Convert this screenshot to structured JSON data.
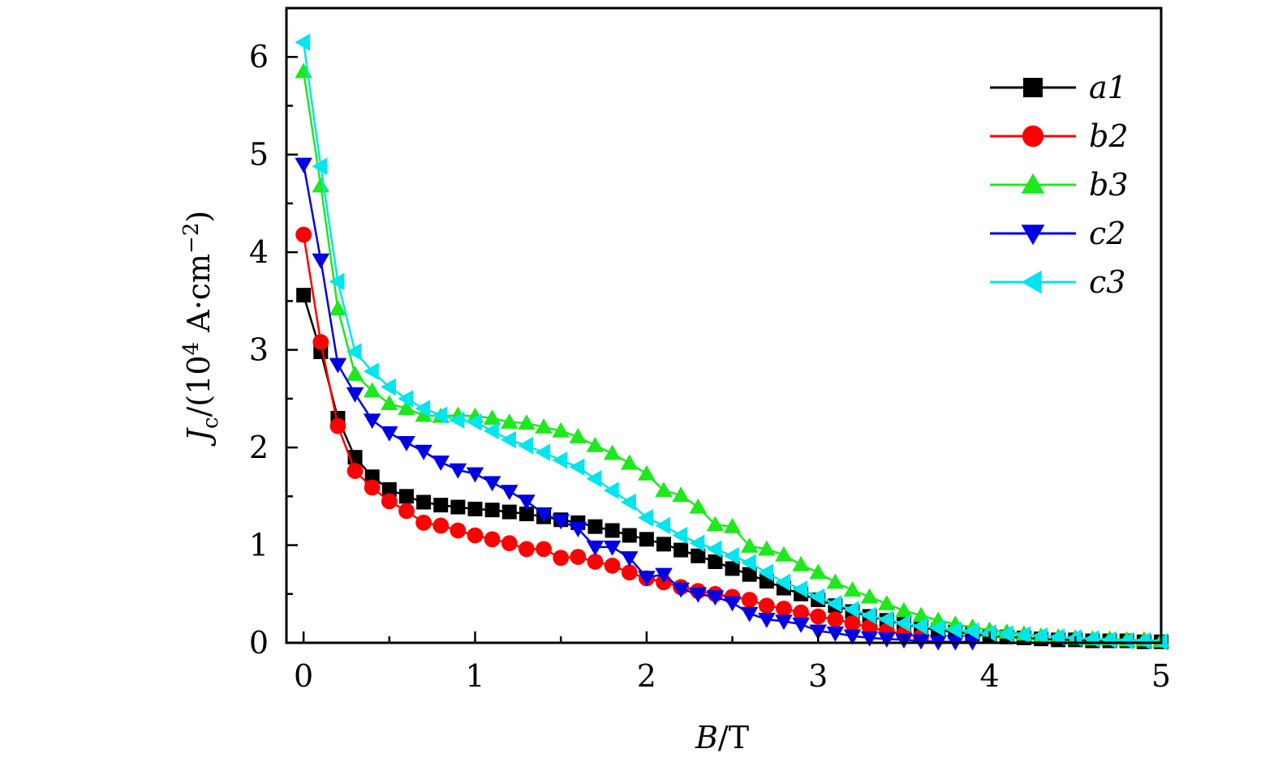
{
  "chart_data": {
    "type": "line",
    "xlabel": "B/T",
    "ylabel": "Jc/(10^4 A·cm^-2)",
    "xlim": [
      -0.1,
      5
    ],
    "ylim": [
      0,
      6.5
    ],
    "xticks": [
      0,
      1,
      2,
      3,
      4,
      5
    ],
    "yticks": [
      0,
      1,
      2,
      3,
      4,
      5,
      6
    ],
    "grid": false,
    "legend_position": "top-right",
    "series": [
      {
        "name": "a1",
        "color": "#000000",
        "marker": "square",
        "x": [
          0,
          0.1,
          0.2,
          0.3,
          0.4,
          0.5,
          0.6,
          0.7,
          0.8,
          0.9,
          1.0,
          1.1,
          1.2,
          1.3,
          1.4,
          1.5,
          1.6,
          1.7,
          1.8,
          1.9,
          2.0,
          2.1,
          2.2,
          2.3,
          2.4,
          2.5,
          2.6,
          2.7,
          2.8,
          2.9,
          3.0,
          3.1,
          3.2,
          3.3,
          3.4,
          3.5,
          3.6,
          3.7,
          3.8,
          3.9,
          4.0,
          4.1,
          4.2,
          4.3,
          4.4,
          4.5,
          4.6,
          4.7,
          4.8,
          4.9,
          5.0
        ],
        "y": [
          3.56,
          2.98,
          2.3,
          1.9,
          1.7,
          1.57,
          1.5,
          1.44,
          1.41,
          1.39,
          1.37,
          1.36,
          1.34,
          1.32,
          1.29,
          1.26,
          1.23,
          1.19,
          1.15,
          1.1,
          1.06,
          1.01,
          0.95,
          0.89,
          0.83,
          0.76,
          0.7,
          0.63,
          0.56,
          0.5,
          0.44,
          0.38,
          0.32,
          0.27,
          0.23,
          0.19,
          0.16,
          0.13,
          0.11,
          0.09,
          0.07,
          0.06,
          0.05,
          0.04,
          0.03,
          0.03,
          0.02,
          0.02,
          0.02,
          0.01,
          0.01
        ]
      },
      {
        "name": "b2",
        "color": "#ff0000",
        "marker": "circle",
        "x": [
          0,
          0.1,
          0.2,
          0.3,
          0.4,
          0.5,
          0.6,
          0.7,
          0.8,
          0.9,
          1.0,
          1.1,
          1.2,
          1.3,
          1.4,
          1.5,
          1.6,
          1.7,
          1.8,
          1.9,
          2.0,
          2.1,
          2.2,
          2.3,
          2.4,
          2.5,
          2.6,
          2.7,
          2.8,
          2.9,
          3.0,
          3.1,
          3.2,
          3.3,
          3.4,
          3.5,
          3.6
        ],
        "y": [
          4.18,
          3.08,
          2.22,
          1.76,
          1.59,
          1.45,
          1.35,
          1.23,
          1.2,
          1.15,
          1.1,
          1.06,
          1.02,
          0.96,
          0.96,
          0.87,
          0.88,
          0.83,
          0.79,
          0.72,
          0.66,
          0.62,
          0.57,
          0.53,
          0.5,
          0.47,
          0.44,
          0.38,
          0.35,
          0.31,
          0.27,
          0.24,
          0.2,
          0.16,
          0.12,
          0.09,
          0.06
        ]
      },
      {
        "name": "b3",
        "color": "#1ee81e",
        "marker": "triangle-up",
        "x": [
          0,
          0.1,
          0.2,
          0.3,
          0.4,
          0.5,
          0.6,
          0.7,
          0.8,
          0.9,
          1.0,
          1.1,
          1.2,
          1.3,
          1.4,
          1.5,
          1.6,
          1.7,
          1.8,
          1.9,
          2.0,
          2.1,
          2.2,
          2.3,
          2.4,
          2.5,
          2.6,
          2.7,
          2.8,
          2.9,
          3.0,
          3.1,
          3.2,
          3.3,
          3.4,
          3.5,
          3.6,
          3.7,
          3.8,
          3.9,
          4.0,
          4.1,
          4.2,
          4.3,
          4.4,
          4.5,
          4.6,
          4.7,
          4.8,
          4.9,
          5.0
        ],
        "y": [
          5.85,
          4.68,
          3.42,
          2.75,
          2.58,
          2.45,
          2.4,
          2.33,
          2.32,
          2.33,
          2.32,
          2.3,
          2.26,
          2.25,
          2.21,
          2.17,
          2.11,
          2.02,
          1.94,
          1.84,
          1.73,
          1.56,
          1.51,
          1.39,
          1.21,
          1.19,
          0.99,
          0.96,
          0.9,
          0.8,
          0.72,
          0.62,
          0.54,
          0.47,
          0.4,
          0.33,
          0.28,
          0.23,
          0.19,
          0.16,
          0.13,
          0.11,
          0.09,
          0.07,
          0.06,
          0.05,
          0.04,
          0.04,
          0.03,
          0.03,
          0.02
        ]
      },
      {
        "name": "c2",
        "color": "#0000e6",
        "marker": "triangle-down",
        "x": [
          0,
          0.1,
          0.2,
          0.3,
          0.4,
          0.5,
          0.6,
          0.7,
          0.8,
          0.9,
          1.0,
          1.1,
          1.2,
          1.3,
          1.4,
          1.5,
          1.6,
          1.7,
          1.8,
          1.9,
          2.0,
          2.1,
          2.2,
          2.3,
          2.4,
          2.5,
          2.6,
          2.7,
          2.8,
          2.9,
          3.0,
          3.1,
          3.2,
          3.3,
          3.4,
          3.5,
          3.6,
          3.7,
          3.8,
          3.9
        ],
        "y": [
          4.9,
          3.92,
          2.85,
          2.55,
          2.28,
          2.15,
          2.05,
          1.96,
          1.85,
          1.77,
          1.73,
          1.64,
          1.55,
          1.45,
          1.32,
          1.25,
          1.17,
          0.98,
          0.98,
          0.87,
          0.67,
          0.7,
          0.55,
          0.5,
          0.47,
          0.41,
          0.3,
          0.24,
          0.22,
          0.19,
          0.12,
          0.1,
          0.07,
          0.05,
          0.04,
          0.03,
          0.02,
          0.01,
          0.01,
          0.01
        ]
      },
      {
        "name": "c3",
        "color": "#00e5ee",
        "marker": "triangle-left",
        "x": [
          0,
          0.1,
          0.2,
          0.3,
          0.4,
          0.5,
          0.6,
          0.7,
          0.8,
          0.9,
          1.0,
          1.1,
          1.2,
          1.3,
          1.4,
          1.5,
          1.6,
          1.7,
          1.8,
          1.9,
          2.0,
          2.1,
          2.2,
          2.3,
          2.4,
          2.5,
          2.6,
          2.7,
          2.8,
          2.9,
          3.0,
          3.1,
          3.2,
          3.3,
          3.4,
          3.5,
          3.6,
          3.7,
          3.8,
          3.9,
          4.0,
          4.1,
          4.2,
          4.3,
          4.4,
          4.5,
          4.6,
          4.7,
          4.8,
          4.9,
          5.0
        ],
        "y": [
          6.15,
          4.88,
          3.7,
          2.98,
          2.78,
          2.62,
          2.5,
          2.4,
          2.33,
          2.28,
          2.26,
          2.17,
          2.08,
          2.02,
          1.95,
          1.87,
          1.8,
          1.68,
          1.56,
          1.44,
          1.28,
          1.2,
          1.1,
          1.02,
          0.96,
          0.89,
          0.82,
          0.72,
          0.62,
          0.55,
          0.47,
          0.4,
          0.34,
          0.28,
          0.24,
          0.2,
          0.17,
          0.15,
          0.13,
          0.12,
          0.1,
          0.09,
          0.08,
          0.07,
          0.06,
          0.05,
          0.04,
          0.03,
          0.02,
          0.02,
          0.01
        ]
      }
    ]
  }
}
